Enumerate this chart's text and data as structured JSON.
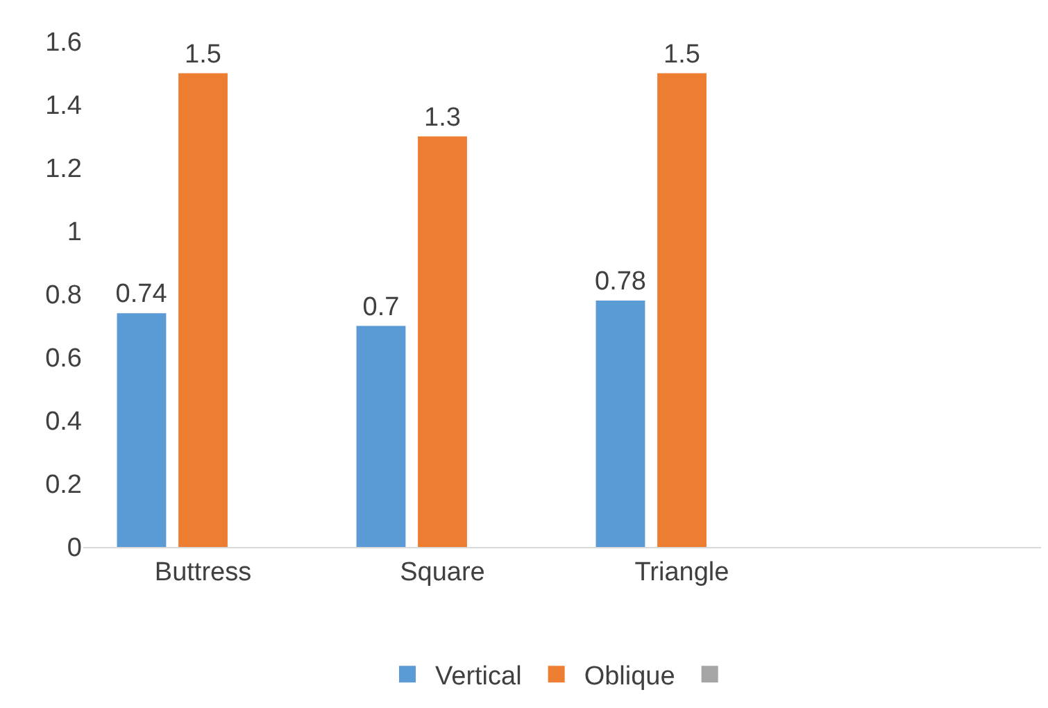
{
  "chart_data": {
    "type": "bar",
    "categories": [
      "Buttress",
      "Square",
      "Triangle",
      null
    ],
    "series": [
      {
        "name": "Vertical",
        "color": "#5b9bd5",
        "values": [
          0.74,
          0.7,
          0.78,
          null
        ]
      },
      {
        "name": "Oblique",
        "color": "#ed7d31",
        "values": [
          1.5,
          1.3,
          1.5,
          null
        ]
      },
      {
        "color": "#a5a5a5",
        "values": [
          null,
          null,
          null,
          null
        ]
      }
    ],
    "ylim": [
      0,
      1.6
    ],
    "yticks": [
      0,
      0.2,
      0.4,
      0.6,
      0.8,
      1,
      1.2,
      1.4,
      1.6
    ],
    "grid": false,
    "legend": "bottom",
    "data_labels": true
  }
}
